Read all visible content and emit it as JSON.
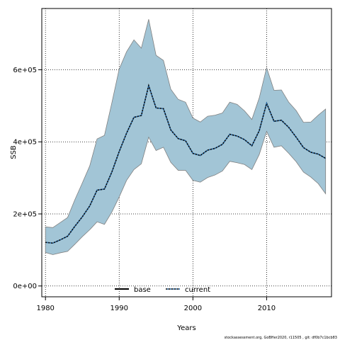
{
  "chart_data": {
    "type": "area",
    "xlabel": "Years",
    "ylabel": "SSB",
    "xlim": [
      1979.5,
      2018.8
    ],
    "ylim": [
      -30000,
      770000
    ],
    "x_ticks": [
      1980,
      1990,
      2000,
      2010
    ],
    "x_tick_labels": [
      "1980",
      "1990",
      "2000",
      "2010"
    ],
    "y_ticks": [
      0,
      200000,
      400000,
      600000
    ],
    "y_tick_labels": [
      "0e+00",
      "2e+05",
      "4e+05",
      "6e+05"
    ],
    "grid": true,
    "legend_position": "bottom-center",
    "colors": {
      "band_fill": "#a2c5d6",
      "band_edge": "#808080",
      "current_line": "#000000",
      "current_dots": "#1f5f9a"
    },
    "years": [
      1980,
      1981,
      1982,
      1983,
      1984,
      1985,
      1986,
      1987,
      1988,
      1989,
      1990,
      1991,
      1992,
      1993,
      1994,
      1995,
      1996,
      1997,
      1998,
      1999,
      2000,
      2001,
      2002,
      2003,
      2004,
      2005,
      2006,
      2007,
      2008,
      2009,
      2010,
      2011,
      2012,
      2013,
      2014,
      2015,
      2016,
      2017,
      2018
    ],
    "series": [
      {
        "name": "base",
        "values": []
      },
      {
        "name": "current",
        "values": [
          121000,
          119000,
          128000,
          138000,
          166000,
          192000,
          222000,
          266000,
          269000,
          316000,
          373000,
          424000,
          468000,
          473000,
          556000,
          494000,
          492000,
          433000,
          409000,
          403000,
          368000,
          362000,
          377000,
          382000,
          393000,
          421000,
          416000,
          406000,
          389000,
          431000,
          507000,
          457000,
          460000,
          440000,
          413000,
          384000,
          371000,
          366000,
          354000
        ],
        "upper": [
          164000,
          162000,
          176000,
          190000,
          240000,
          286000,
          333000,
          408000,
          418000,
          508000,
          602000,
          650000,
          683000,
          660000,
          740000,
          640000,
          626000,
          546000,
          518000,
          510000,
          466000,
          455000,
          471000,
          474000,
          480000,
          510000,
          504000,
          486000,
          462000,
          522000,
          606000,
          543000,
          544000,
          510000,
          487000,
          454000,
          455000,
          474000,
          491000
        ],
        "lower": [
          93000,
          87000,
          92000,
          96000,
          116000,
          137000,
          156000,
          178000,
          171000,
          205000,
          247000,
          293000,
          323000,
          339000,
          413000,
          376000,
          385000,
          343000,
          321000,
          321000,
          293000,
          288000,
          301000,
          308000,
          319000,
          346000,
          342000,
          337000,
          323000,
          365000,
          429000,
          385000,
          389000,
          368000,
          345000,
          316000,
          302000,
          284000,
          256000
        ]
      }
    ],
    "footer": "stockassessment.org, GoBHer2020, r11505 , git: df0b7c1bcb83"
  }
}
